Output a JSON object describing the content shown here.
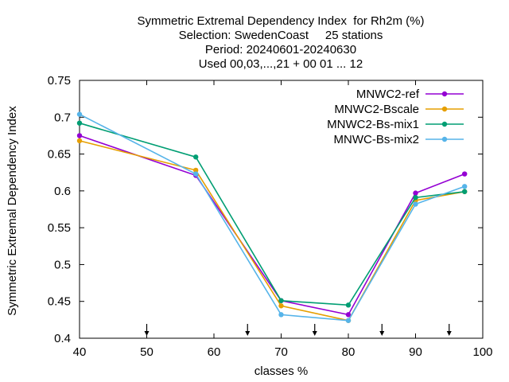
{
  "chart_data": {
    "type": "line",
    "title_lines": [
      "Symmetric Extremal Dependency Index  for Rh2m (%)",
      "Selection: SwedenCoast     25 stations",
      "Period: 20240601-20240630",
      "Used 00,03,...,21 + 00 01 ... 12"
    ],
    "xlabel": "classes %",
    "ylabel": "Symmetric Extremal Dependency Index",
    "xlim": [
      40,
      100
    ],
    "ylim": [
      0.4,
      0.75
    ],
    "xticks": [
      "40",
      "50",
      "60",
      "70",
      "80",
      "90",
      "100"
    ],
    "yticks": [
      "0.4",
      "0.45",
      "0.5",
      "0.55",
      "0.6",
      "0.65",
      "0.7",
      "0.75"
    ],
    "arrow_marks_x": [
      50,
      65,
      75,
      85,
      95
    ],
    "legend_position": "top-right",
    "grid": false,
    "series": [
      {
        "name": "MNWC2-ref",
        "color": "#9400d3",
        "x": [
          40,
          57.3,
          70,
          80,
          90,
          97.3
        ],
        "values": [
          0.675,
          0.621,
          0.451,
          0.432,
          0.597,
          0.623
        ]
      },
      {
        "name": "MNWC2-Bscale",
        "color": "#e69f00",
        "x": [
          40,
          57.3,
          70,
          80,
          90,
          97.3
        ],
        "values": [
          0.668,
          0.628,
          0.444,
          0.424,
          0.587,
          0.599
        ]
      },
      {
        "name": "MNWC2-Bs-mix1",
        "color": "#009e73",
        "x": [
          40,
          57.3,
          70,
          80,
          90,
          97.3
        ],
        "values": [
          0.692,
          0.646,
          0.451,
          0.445,
          0.591,
          0.599
        ]
      },
      {
        "name": "MNWC-Bs-mix2",
        "color": "#56b4e9",
        "x": [
          40,
          57.3,
          70,
          80,
          90,
          97.3
        ],
        "values": [
          0.704,
          0.623,
          0.432,
          0.424,
          0.582,
          0.606
        ]
      }
    ]
  }
}
